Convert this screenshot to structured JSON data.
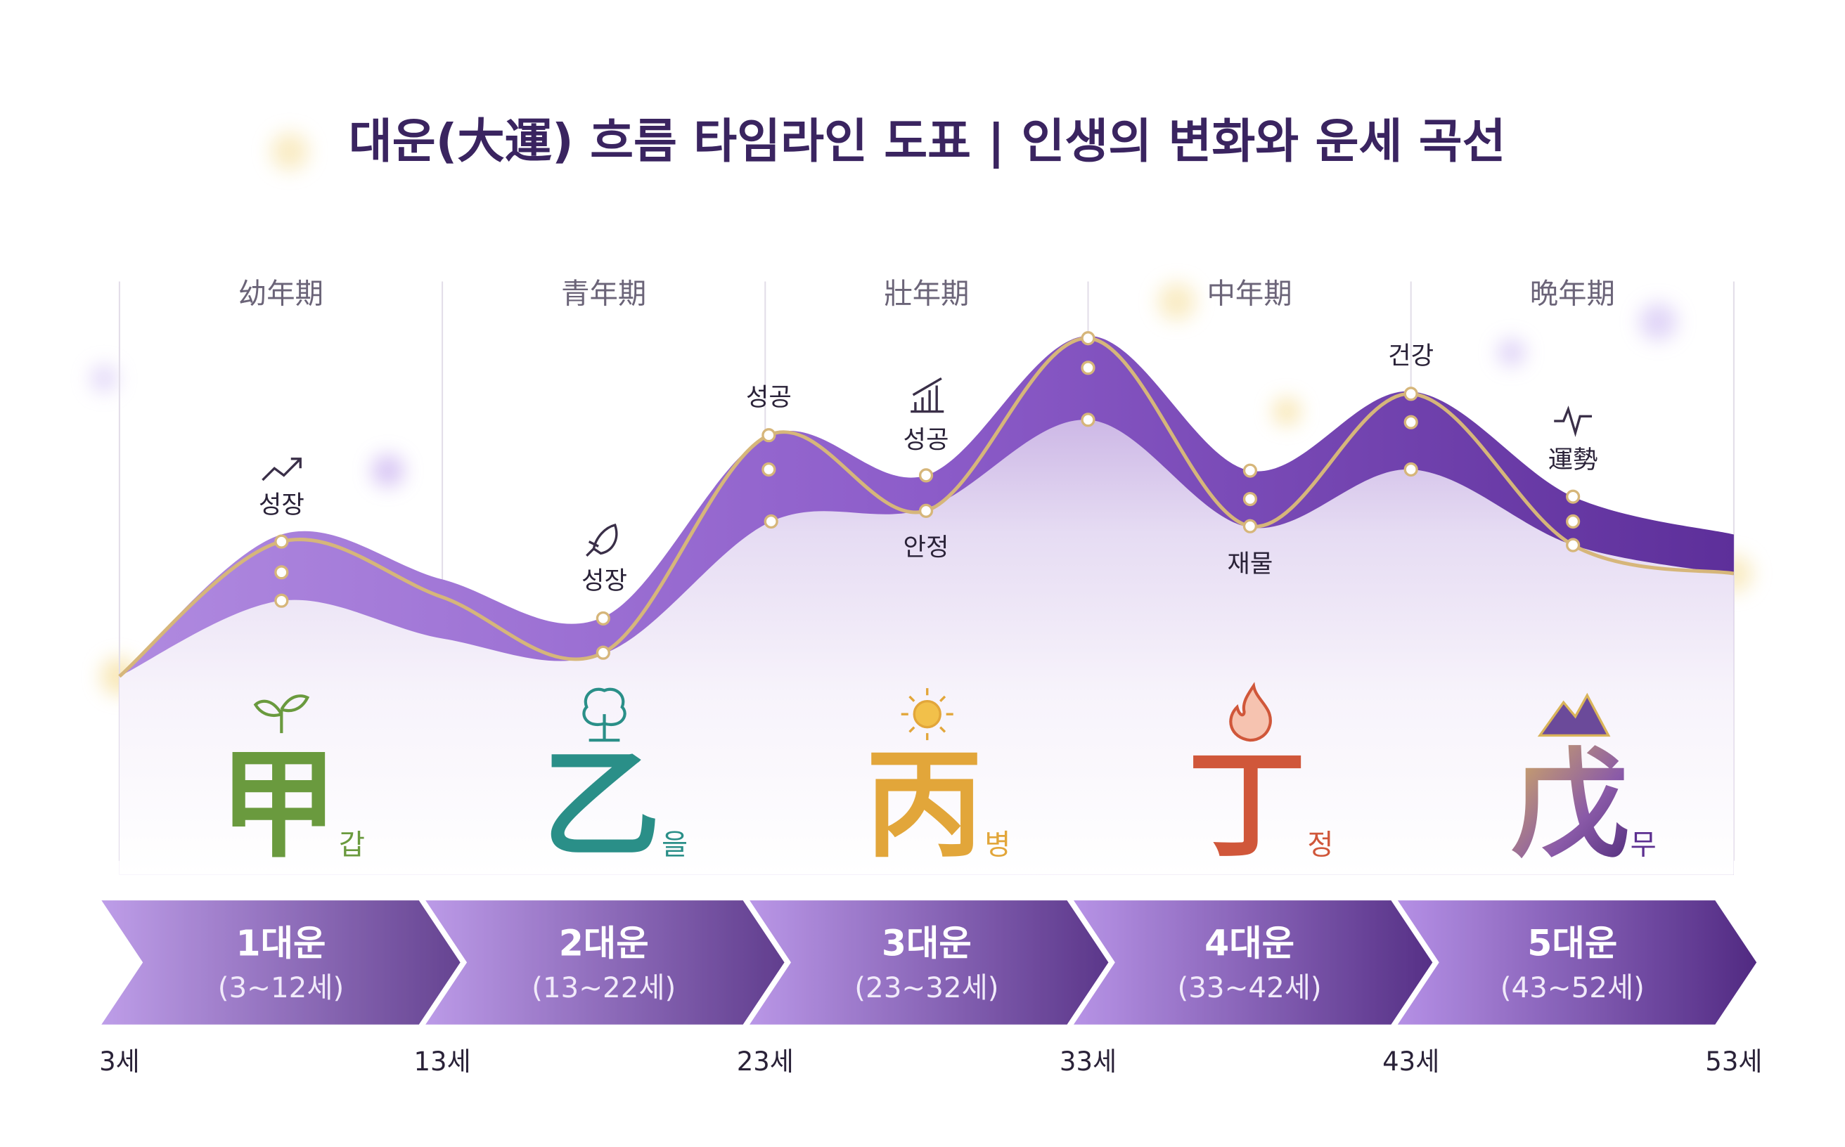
{
  "title": "대운(大運) 흐름 타임라인 도표 | 인생의 변화와 운세 곡선",
  "periods": [
    "幼年期",
    "青年期",
    "壯年期",
    "中年期",
    "晩年期"
  ],
  "annotations": [
    {
      "label": "성장"
    },
    {
      "label": "성장"
    },
    {
      "label": "성공"
    },
    {
      "label": "성공"
    },
    {
      "label": "안정"
    },
    {
      "label": "재물"
    },
    {
      "label": "건강"
    },
    {
      "label": "運勢"
    }
  ],
  "stages": [
    {
      "stem": "甲",
      "reading": "갑",
      "name": "1대운",
      "range": "(3~12세)"
    },
    {
      "stem": "乙",
      "reading": "을",
      "name": "2대운",
      "range": "(13~22세)"
    },
    {
      "stem": "丙",
      "reading": "병",
      "name": "3대운",
      "range": "(23~32세)"
    },
    {
      "stem": "丁",
      "reading": "정",
      "name": "4대운",
      "range": "(33~42세)"
    },
    {
      "stem": "戊",
      "reading": "무",
      "name": "5대운",
      "range": "(43~52세)"
    }
  ],
  "age_ticks": [
    "3세",
    "13세",
    "23세",
    "33세",
    "43세",
    "53세"
  ]
}
